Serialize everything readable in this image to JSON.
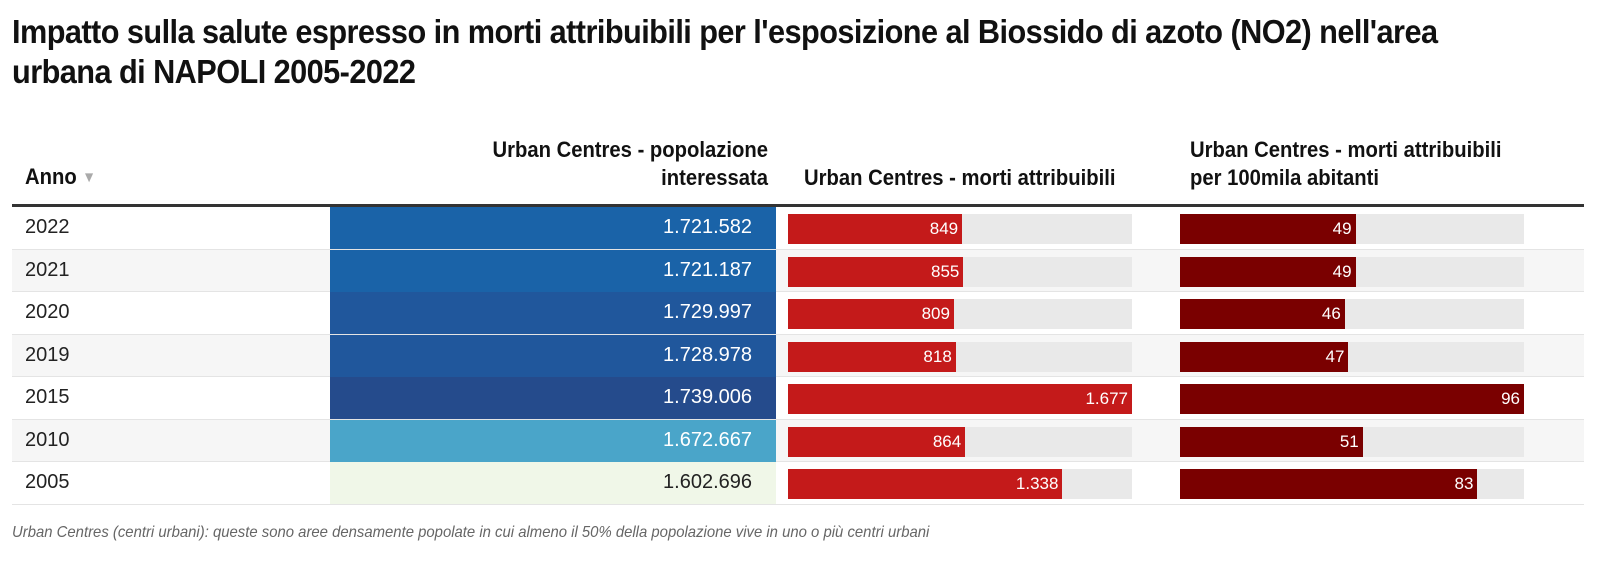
{
  "title": "Impatto sulla salute espresso in morti attribuibili per l'esposizione al Biossido di azoto (NO2) nell'area urbana di NAPOLI 2005-2022",
  "footnote": "Urban Centres (centri urbani): queste sono aree densamente popolate in cui almeno il 50% della popolazione vive in uno o più centri urbani",
  "colors": {
    "morti_bar": "#c41a1a",
    "rate_bar": "#7a0000",
    "bar_track": "#e9e9e9"
  },
  "chart_data": {
    "type": "table",
    "title": "Impatto sulla salute espresso in morti attribuibili per l'esposizione al Biossido di azoto (NO2) nell'area urbana di NAPOLI 2005-2022",
    "columns": [
      {
        "key": "anno",
        "label": "Anno",
        "sort_indicator": "▼"
      },
      {
        "key": "popolazione",
        "label": "Urban Centres - popolazione interessata",
        "style": "heatmap"
      },
      {
        "key": "morti",
        "label": "Urban Centres - morti attribuibili",
        "style": "bar",
        "max": 1677
      },
      {
        "key": "rate",
        "label": "Urban Centres - morti attribuibili per 100mila abitanti",
        "style": "bar",
        "max": 96
      }
    ],
    "rows": [
      {
        "anno": "2022",
        "popolazione": 1721582,
        "popolazione_label": "1.721.582",
        "pop_color": "#1a63a8",
        "pop_text": "#ffffff",
        "morti": 849,
        "morti_label": "849",
        "rate": 49,
        "rate_label": "49"
      },
      {
        "anno": "2021",
        "popolazione": 1721187,
        "popolazione_label": "1.721.187",
        "pop_color": "#1a63a8",
        "pop_text": "#ffffff",
        "morti": 855,
        "morti_label": "855",
        "rate": 49,
        "rate_label": "49"
      },
      {
        "anno": "2020",
        "popolazione": 1729997,
        "popolazione_label": "1.729.997",
        "pop_color": "#20579c",
        "pop_text": "#ffffff",
        "morti": 809,
        "morti_label": "809",
        "rate": 46,
        "rate_label": "46"
      },
      {
        "anno": "2019",
        "popolazione": 1728978,
        "popolazione_label": "1.728.978",
        "pop_color": "#20579c",
        "pop_text": "#ffffff",
        "morti": 818,
        "morti_label": "818",
        "rate": 47,
        "rate_label": "47"
      },
      {
        "anno": "2015",
        "popolazione": 1739006,
        "popolazione_label": "1.739.006",
        "pop_color": "#254b8c",
        "pop_text": "#ffffff",
        "morti": 1677,
        "morti_label": "1.677",
        "rate": 96,
        "rate_label": "96"
      },
      {
        "anno": "2010",
        "popolazione": 1672667,
        "popolazione_label": "1.672.667",
        "pop_color": "#4aa5c9",
        "pop_text": "#ffffff",
        "morti": 864,
        "morti_label": "864",
        "rate": 51,
        "rate_label": "51"
      },
      {
        "anno": "2005",
        "popolazione": 1602696,
        "popolazione_label": "1.602.696",
        "pop_color": "#f0f7e8",
        "pop_text": "#222222",
        "morti": 1338,
        "morti_label": "1.338",
        "rate": 83,
        "rate_label": "83"
      }
    ]
  }
}
